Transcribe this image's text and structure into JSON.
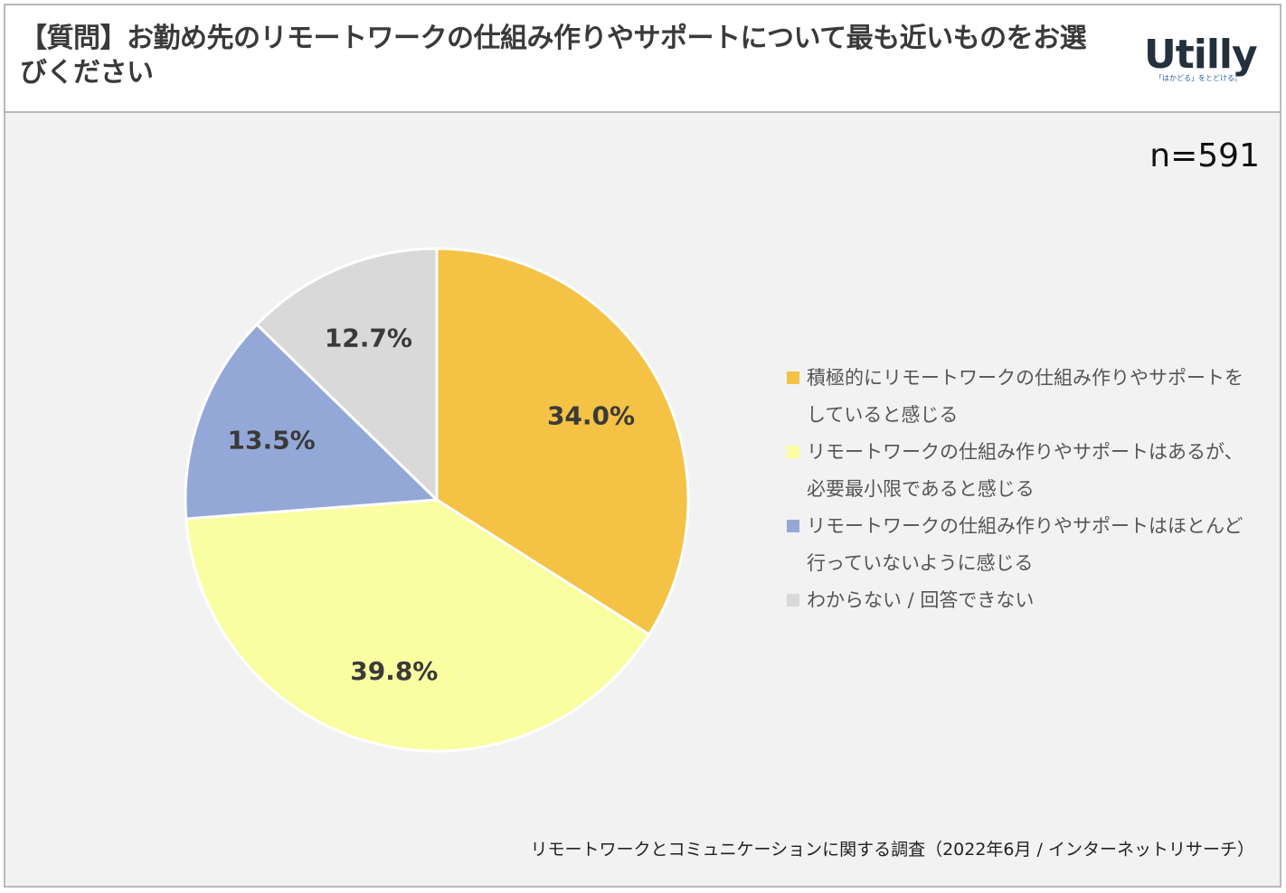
{
  "header": {
    "title": "【質問】お勤め先のリモートワークの仕組み作りやサポートについて最も近いものをお選びください",
    "logo_main": "Utilly",
    "logo_sub": "「はかどる」をとどける。"
  },
  "sample_size": "n=591",
  "footer": "リモートワークとコミュニケーションに関する調査（2022年6月 / インターネットリサーチ）",
  "colors": {
    "slice1": "#f4c244",
    "slice2": "#fafda0",
    "slice3": "#94a8d8",
    "slice4": "#d9d9d9"
  },
  "chart_data": {
    "type": "pie",
    "title": "【質問】お勤め先のリモートワークの仕組み作りやサポートについて最も近いものをお選びください",
    "categories": [
      "積極的にリモートワークの仕組み作りやサポートをしていると感じる",
      "リモートワークの仕組み作りやサポートはあるが、必要最小限であると感じる",
      "リモートワークの仕組み作りやサポートはほとんど行っていないように感じる",
      "わからない / 回答できない"
    ],
    "values": [
      34.0,
      39.8,
      13.5,
      12.7
    ],
    "value_labels": [
      "34.0%",
      "39.8%",
      "13.5%",
      "12.7%"
    ],
    "legend_position": "right"
  }
}
